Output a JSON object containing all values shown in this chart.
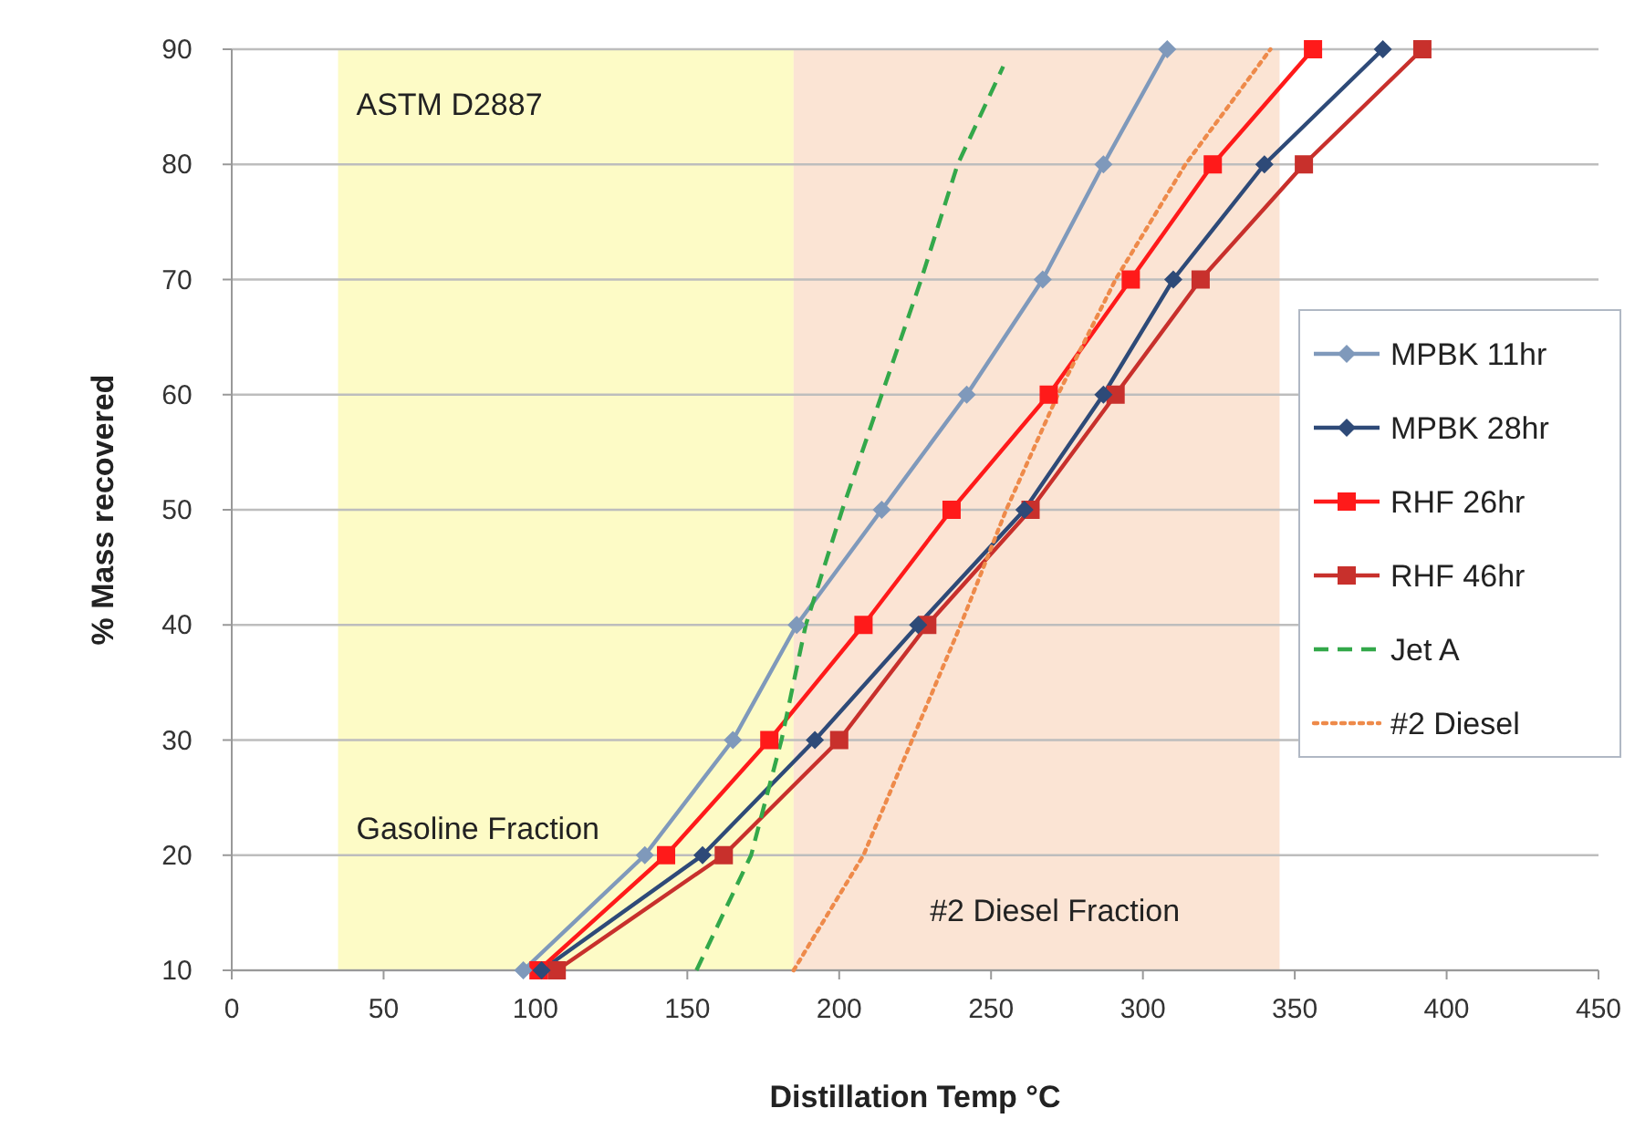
{
  "chart_data": {
    "type": "line",
    "xlabel": "Distillation Temp °C",
    "ylabel": "% Mass recovered",
    "xlim": [
      0,
      450
    ],
    "ylim": [
      10,
      90
    ],
    "xticks": [
      0,
      50,
      100,
      150,
      200,
      250,
      300,
      350,
      400,
      450
    ],
    "yticks": [
      10,
      20,
      30,
      40,
      50,
      60,
      70,
      80,
      90
    ],
    "grid": "y",
    "legend": "right",
    "line_style": "solid",
    "annotations": [
      "ASTM D2887"
    ],
    "bands": [
      {
        "axis": "x",
        "from": 35,
        "to": 185,
        "label": "Gasoline Fraction",
        "color": "#fdfbc6"
      },
      {
        "axis": "x",
        "from": 185,
        "to": 345,
        "label": "#2 Diesel Fraction",
        "color": "#fbe4d4"
      }
    ],
    "series": [
      {
        "name": "MPBK 11hr",
        "color": "#7f99bb",
        "marker": "diamond",
        "x": [
          96,
          136,
          165,
          186,
          214,
          242,
          267,
          287,
          308
        ],
        "values": [
          10,
          20,
          30,
          40,
          50,
          60,
          70,
          80,
          90
        ]
      },
      {
        "name": "MPBK 28hr",
        "color": "#2e4a78",
        "marker": "diamond",
        "x": [
          102,
          155,
          192,
          226,
          261,
          287,
          310,
          340,
          379
        ],
        "values": [
          10,
          20,
          30,
          40,
          50,
          60,
          70,
          80,
          90
        ]
      },
      {
        "name": "RHF 26hr",
        "color": "#ff1a1a",
        "marker": "square",
        "x": [
          101,
          143,
          177,
          208,
          237,
          269,
          296,
          323,
          356
        ],
        "values": [
          10,
          20,
          30,
          40,
          50,
          60,
          70,
          80,
          90
        ]
      },
      {
        "name": "RHF 46hr",
        "color": "#c8302c",
        "marker": "square",
        "x": [
          107,
          162,
          200,
          229,
          263,
          291,
          319,
          353,
          392
        ],
        "values": [
          10,
          20,
          30,
          40,
          50,
          60,
          70,
          80,
          90
        ]
      },
      {
        "name": "Jet A",
        "color": "#33a84a",
        "marker": "none",
        "line_style": "dashed",
        "x": [
          153,
          171,
          181,
          189,
          201,
          214,
          227,
          239,
          254
        ],
        "values": [
          10,
          20,
          30,
          40,
          50,
          60,
          70,
          80,
          88.5
        ]
      },
      {
        "name": "#2 Diesel",
        "color": "#ee8a4a",
        "marker": "none",
        "line_style": "dotted",
        "x": [
          185,
          208,
          224,
          240,
          255,
          272,
          291,
          314,
          342
        ],
        "values": [
          10,
          20,
          30,
          40,
          50,
          60,
          70,
          80,
          90
        ]
      }
    ]
  }
}
